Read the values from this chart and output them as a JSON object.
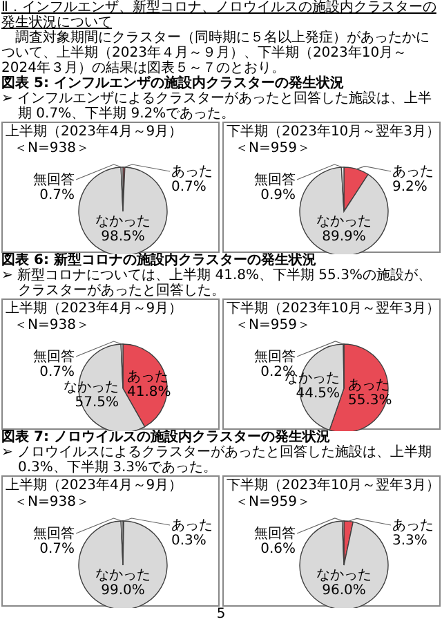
{
  "chart_data": [
    {
      "type": "pie",
      "title": "上半期（2023年4月～9月）",
      "subtitle": "＜N=938＞",
      "categories": [
        "あった",
        "なかった",
        "無回答"
      ],
      "values": [
        0.7,
        98.5,
        0.7
      ],
      "value_labels": [
        "0.7%",
        "98.5%",
        "0.7%"
      ],
      "colors": [
        "#e84a55",
        "#d9d9d9",
        "#ffffff"
      ],
      "annotations": [
        "Ⅱ．インフルエンザ、新型コロナ、ノロウイルスの施設内クラスターの発生状況について",
        "調査対象期間にクラスター（同時期に５名以上発症）があったかについて、上半期（2023年４月～９月）、下半期（2023年10月～2024年３月）の結果は図表５～７のとおり。",
        "図表 5:  インフルエンザの施設内クラスターの発生状況",
        "➢ インフルエンザによるクラスターがあったと回答した施設は、上半期 0.7%、下半期 9.2%であった。"
      ]
    },
    {
      "type": "pie",
      "title": "下半期（2023年10月～翌年3月）",
      "subtitle": "＜N=959＞",
      "categories": [
        "あった",
        "なかった",
        "無回答"
      ],
      "values": [
        9.2,
        89.9,
        0.9
      ],
      "value_labels": [
        "9.2%",
        "89.9%",
        "0.9%"
      ],
      "colors": [
        "#e84a55",
        "#d9d9d9",
        "#ffffff"
      ]
    },
    {
      "type": "pie",
      "title": "上半期（2023年4月～9月）",
      "subtitle": "＜N=938＞",
      "categories": [
        "あった",
        "なかった",
        "無回答"
      ],
      "values": [
        41.8,
        57.5,
        0.7
      ],
      "value_labels": [
        "41.8%",
        "57.5%",
        "0.7%"
      ],
      "colors": [
        "#e84a55",
        "#d9d9d9",
        "#ffffff"
      ],
      "annotations": [
        "図表 6:  新型コロナの施設内クラスターの発生状況",
        "➢ 新型コロナについては、上半期 41.8%、下半期 55.3%の施設が、クラスターがあったと回答した。"
      ]
    },
    {
      "type": "pie",
      "title": "下半期（2023年10月～翌年3月）",
      "subtitle": "＜N=959＞",
      "categories": [
        "あった",
        "なかった",
        "無回答"
      ],
      "values": [
        55.3,
        44.5,
        0.2
      ],
      "value_labels": [
        "55.3%",
        "44.5%",
        "0.2%"
      ],
      "colors": [
        "#e84a55",
        "#d9d9d9",
        "#ffffff"
      ]
    },
    {
      "type": "pie",
      "title": "上半期（2023年4月～9月）",
      "subtitle": "＜N=938＞",
      "categories": [
        "あった",
        "なかった",
        "無回答"
      ],
      "values": [
        0.3,
        99.0,
        0.7
      ],
      "value_labels": [
        "0.3%",
        "99.0%",
        "0.7%"
      ],
      "colors": [
        "#e84a55",
        "#d9d9d9",
        "#ffffff"
      ],
      "annotations": [
        "図表 7:  ノロウイルスの施設内クラスターの発生状況",
        "➢ ノロウイルスによるクラスターがあったと回答した施設は、上半期 0.3%、下半期 3.3%であった。"
      ]
    },
    {
      "type": "pie",
      "title": "下半期（2023年10月～翌年3月）",
      "subtitle": "＜N=959＞",
      "categories": [
        "あった",
        "なかった",
        "無回答"
      ],
      "values": [
        3.3,
        96.0,
        0.6
      ],
      "value_labels": [
        "3.3%",
        "96.0%",
        "0.6%"
      ],
      "colors": [
        "#e84a55",
        "#d9d9d9",
        "#ffffff"
      ],
      "annotations": [
        "5"
      ]
    }
  ]
}
